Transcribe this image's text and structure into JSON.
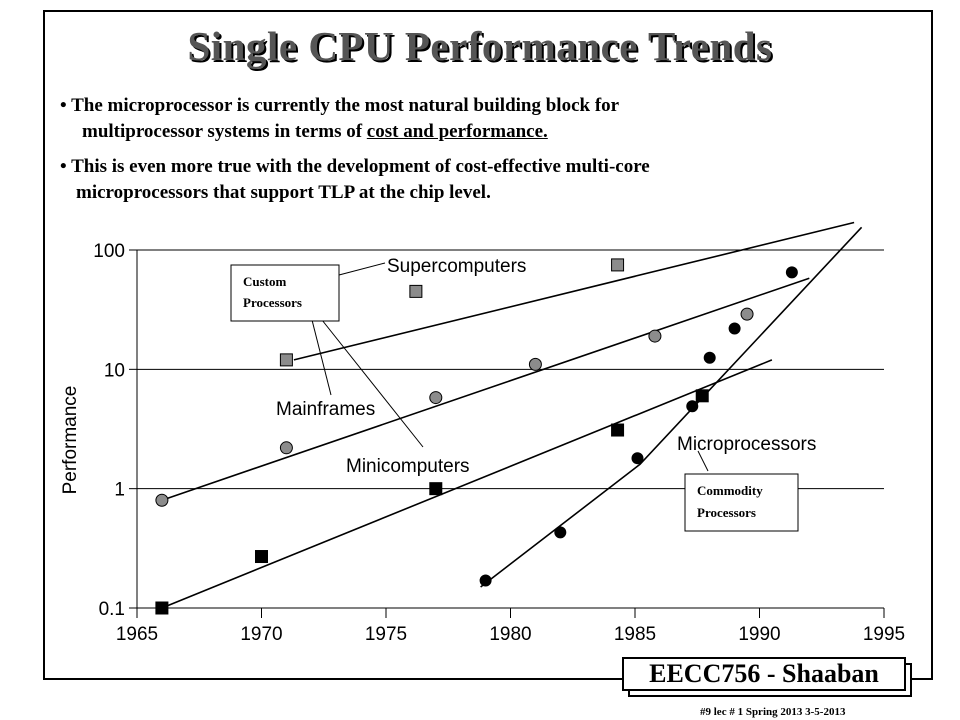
{
  "slide": {
    "title": "Single CPU Performance Trends",
    "bullets": [
      {
        "line1": "The microprocessor is currently the most natural building block for",
        "line2_pre": "multiprocessor systems in terms of ",
        "line2_u": "cost and performance."
      },
      {
        "line1": "This is even more true with the development  of cost-effective multi-core",
        "line2": "microprocessors that support TLP at the chip level."
      }
    ],
    "footer": "EECC756 - Shaaban",
    "footer_small": "#9  lec # 1   Spring 2013  3-5-2013"
  },
  "chart_data": {
    "type": "scatter",
    "title": "",
    "xlabel": "",
    "ylabel": "Performance",
    "xlim": [
      1965,
      1995
    ],
    "ylim": [
      0.1,
      100
    ],
    "yscale": "log",
    "x_ticks": [
      "1965",
      "1970",
      "1975",
      "1980",
      "1985",
      "1990",
      "1995"
    ],
    "y_ticks": [
      "0.1",
      "1",
      "10",
      "100"
    ],
    "grid": "horizontal at 1, 10, 100",
    "series": [
      {
        "name": "Supercomputers",
        "marker": "gray-square",
        "x": [
          1971,
          1976.2,
          1984.3
        ],
        "y": [
          12,
          45,
          75
        ],
        "trend": [
          [
            1971.3,
            12
          ],
          [
            1993.8,
            170
          ]
        ]
      },
      {
        "name": "Mainframes",
        "marker": "gray-circle",
        "x": [
          1966,
          1971,
          1977,
          1981,
          1985.8,
          1989.5
        ],
        "y": [
          0.8,
          2.2,
          5.8,
          11,
          19,
          29
        ],
        "trend": [
          [
            1966,
            0.8
          ],
          [
            1992,
            58
          ]
        ]
      },
      {
        "name": "Minicomputers",
        "marker": "black-square",
        "x": [
          1966,
          1970,
          1977,
          1984.3,
          1987.7
        ],
        "y": [
          0.1,
          0.27,
          1.0,
          3.1,
          6
        ],
        "trend": [
          [
            1966,
            0.1
          ],
          [
            1990.5,
            12
          ]
        ]
      },
      {
        "name": "Microprocessors",
        "marker": "black-circle",
        "x": [
          1979,
          1982,
          1985.1,
          1987.3,
          1988,
          1989,
          1991.3
        ],
        "y": [
          0.17,
          0.43,
          1.8,
          4.9,
          12.5,
          22,
          65
        ],
        "trend": [
          [
            1978.8,
            0.15
          ],
          [
            1985.2,
            1.6
          ],
          [
            1994.1,
            155
          ]
        ]
      }
    ],
    "annotations": [
      {
        "text": "Supercomputers",
        "series": "Supercomputers"
      },
      {
        "text": "Mainframes",
        "series": "Mainframes"
      },
      {
        "text": "Minicomputers",
        "series": "Minicomputers"
      },
      {
        "text": "Microprocessors",
        "series": "Microprocessors"
      }
    ],
    "callouts": [
      {
        "line1": "Custom",
        "line2": "Processors"
      },
      {
        "line1": "Commodity",
        "line2": "Processors"
      }
    ]
  }
}
